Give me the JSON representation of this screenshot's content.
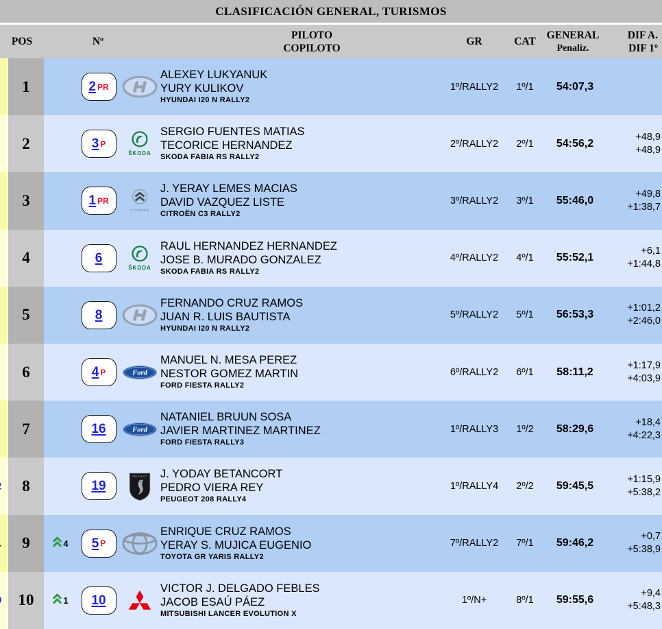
{
  "title": "CLASIFICACIÓN GENERAL, TURISMOS",
  "header": {
    "pos": "POS",
    "num": "Nº",
    "pilot": "PILOTO",
    "copilot": "COPILOTO",
    "gr": "GR",
    "cat": "CAT",
    "general": "GENERAL",
    "penaliz": "Penaliz.",
    "dif_a": "DIF A.",
    "dif_1": "DIF 1º"
  },
  "colors": {
    "title_band": "#bdbdbd",
    "header_band": "#c9c9c9",
    "pos_col_odd": "#b2b2b2",
    "pos_col_even": "#c9c9c9",
    "row_odd": "#b1cef4",
    "row_even": "#dbe7fc",
    "edge_odd": "#f9f9a6",
    "edge_even": "#fdfdd6",
    "number_blue": "#2121dd",
    "suffix_red": "#e8112d",
    "gain_green": "#2f9e44",
    "fragment_blue": "#2121dd",
    "fragment_dark": "#222233"
  },
  "rows": [
    {
      "pos": "1",
      "gain": "",
      "num": "2",
      "suffix": "PR",
      "brand": "hyundai",
      "driver": "ALEXEY LUKYANUK",
      "codriver": "YURY KULIKOV",
      "car": "HYUNDAI I20 N RALLY2",
      "gr": "1º/RALLY2",
      "cat": "1º/1",
      "general": "54:07,3",
      "dif_a": "",
      "dif_1": "",
      "fragment": "",
      "fragment_color": ""
    },
    {
      "pos": "2",
      "gain": "",
      "num": "3",
      "suffix": "P",
      "brand": "skoda",
      "driver": "SERGIO FUENTES MATIAS",
      "codriver": "TECORICE HERNANDEZ",
      "car": "SKODA FABIA RS RALLY2",
      "gr": "2º/RALLY2",
      "cat": "2º/1",
      "general": "54:56,2",
      "dif_a": "+48,9",
      "dif_1": "+48,9",
      "fragment": "",
      "fragment_color": ""
    },
    {
      "pos": "3",
      "gain": "",
      "num": "1",
      "suffix": "PR",
      "brand": "citroen",
      "driver": "J. YERAY LEMES MACIAS",
      "codriver": "DAVID VAZQUEZ LISTE",
      "car": "CITROËN C3 RALLY2",
      "gr": "3º/RALLY2",
      "cat": "3º/1",
      "general": "55:46,0",
      "dif_a": "+49,8",
      "dif_1": "+1:38,7",
      "fragment": "",
      "fragment_color": ""
    },
    {
      "pos": "4",
      "gain": "",
      "num": "6",
      "suffix": "",
      "brand": "skoda",
      "driver": "RAUL HERNANDEZ HERNANDEZ",
      "codriver": "JOSE B. MURADO GONZALEZ",
      "car": "SKODA FABIA RS RALLY2",
      "gr": "4º/RALLY2",
      "cat": "4º/1",
      "general": "55:52,1",
      "dif_a": "+6,1",
      "dif_1": "+1:44,8",
      "fragment": "",
      "fragment_color": ""
    },
    {
      "pos": "5",
      "gain": "",
      "num": "8",
      "suffix": "",
      "brand": "hyundai",
      "driver": "FERNANDO CRUZ RAMOS",
      "codriver": "JUAN R. LUIS BAUTISTA",
      "car": "HYUNDAI I20 N RALLY2",
      "gr": "5º/RALLY2",
      "cat": "5º/1",
      "general": "56:53,3",
      "dif_a": "+1:01,2",
      "dif_1": "+2:46,0",
      "fragment": "",
      "fragment_color": ""
    },
    {
      "pos": "6",
      "gain": "",
      "num": "4",
      "suffix": "P",
      "brand": "ford",
      "driver": "MANUEL N. MESA PEREZ",
      "codriver": "NESTOR GOMEZ MARTIN",
      "car": "FORD FIESTA RALLY2",
      "gr": "6º/RALLY2",
      "cat": "6º/1",
      "general": "58:11,2",
      "dif_a": "+1:17,9",
      "dif_1": "+4:03,9",
      "fragment": "",
      "fragment_color": ""
    },
    {
      "pos": "7",
      "gain": "",
      "num": "16",
      "suffix": "",
      "brand": "ford",
      "driver": "NATANIEL BRUUN SOSA",
      "codriver": "JAVIER MARTINEZ MARTINEZ",
      "car": "FORD FIESTA RALLY3",
      "gr": "1º/RALLY3",
      "cat": "1º/2",
      "general": "58:29,6",
      "dif_a": "+18,4",
      "dif_1": "+4:22,3",
      "fragment": "",
      "fragment_color": ""
    },
    {
      "pos": "8",
      "gain": "",
      "num": "19",
      "suffix": "",
      "brand": "peugeot",
      "driver": "J. YODAY BETANCORT",
      "codriver": "PEDRO VIERA REY",
      "car": "PEUGEOT 208 RALLY4",
      "gr": "1º/RALLY4",
      "cat": "2º/2",
      "general": "59:45,5",
      "dif_a": "+1:15,9",
      "dif_1": "+5:38,2",
      "fragment": "2",
      "fragment_color": "#2121dd"
    },
    {
      "pos": "9",
      "gain": "4",
      "num": "5",
      "suffix": "P",
      "brand": "toyota",
      "driver": "ENRIQUE CRUZ RAMOS",
      "codriver": "YERAY S. MUJICA EUGENIO",
      "car": "TOYOTA GR YARIS RALLY2",
      "gr": "7º/RALLY2",
      "cat": "7º/1",
      "general": "59:46,2",
      "dif_a": "+0,7",
      "dif_1": "+5:38,9",
      "fragment": "1",
      "fragment_color": "#222233"
    },
    {
      "pos": "10",
      "gain": "1",
      "num": "10",
      "suffix": "",
      "brand": "mitsubishi",
      "driver": "VICTOR J. DELGADO FEBLES",
      "codriver": "JACOB ESAÚ PÁEZ",
      "car": "MITSUBISHI LANCER EVOLUTION X",
      "gr": "1º/N+",
      "cat": "8º/1",
      "general": "59:55,6",
      "dif_a": "+9,4",
      "dif_1": "+5:48,3",
      "fragment": "0",
      "fragment_color": "#2121dd"
    }
  ]
}
